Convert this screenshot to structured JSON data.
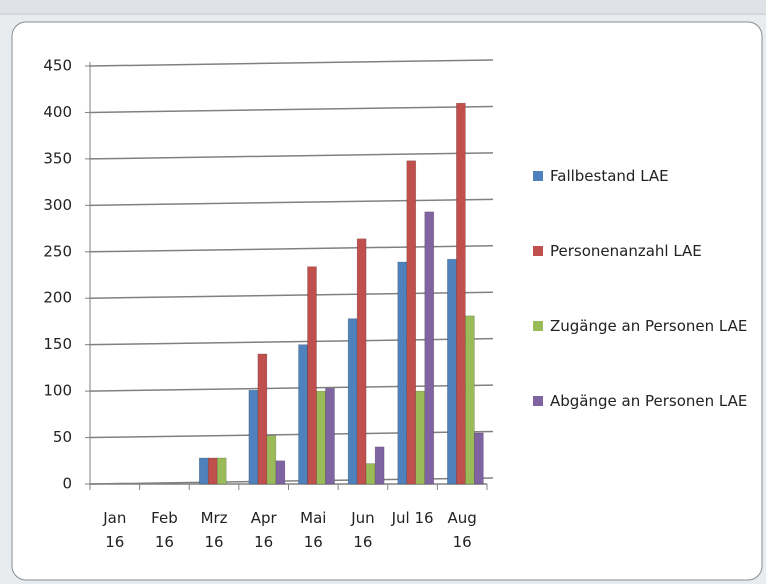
{
  "chart_data": {
    "type": "bar",
    "categories": [
      "Jan 16",
      "Feb 16",
      "Mrz 16",
      "Apr 16",
      "Mai 16",
      "Jun 16",
      "Jul 16",
      "Aug 16"
    ],
    "series": [
      {
        "name": "Fallbestand LAE",
        "color": "#4f81bd",
        "values": [
          0,
          0,
          28,
          101,
          150,
          178,
          239,
          242
        ]
      },
      {
        "name": "Personenanzahl LAE",
        "color": "#c0504d",
        "values": [
          0,
          0,
          28,
          140,
          234,
          264,
          348,
          410
        ]
      },
      {
        "name": "Zugänge an Personen LAE",
        "color": "#9bbb59",
        "values": [
          0,
          0,
          28,
          52,
          100,
          22,
          100,
          181
        ]
      },
      {
        "name": "Abgänge an Personen LAE",
        "color": "#8064a2",
        "values": [
          0,
          0,
          0,
          25,
          103,
          40,
          293,
          55
        ]
      }
    ],
    "ylim": [
      0,
      450
    ],
    "yticks": [
      0,
      50,
      100,
      150,
      200,
      250,
      300,
      350,
      400,
      450
    ],
    "grid": true,
    "legend": "right"
  }
}
